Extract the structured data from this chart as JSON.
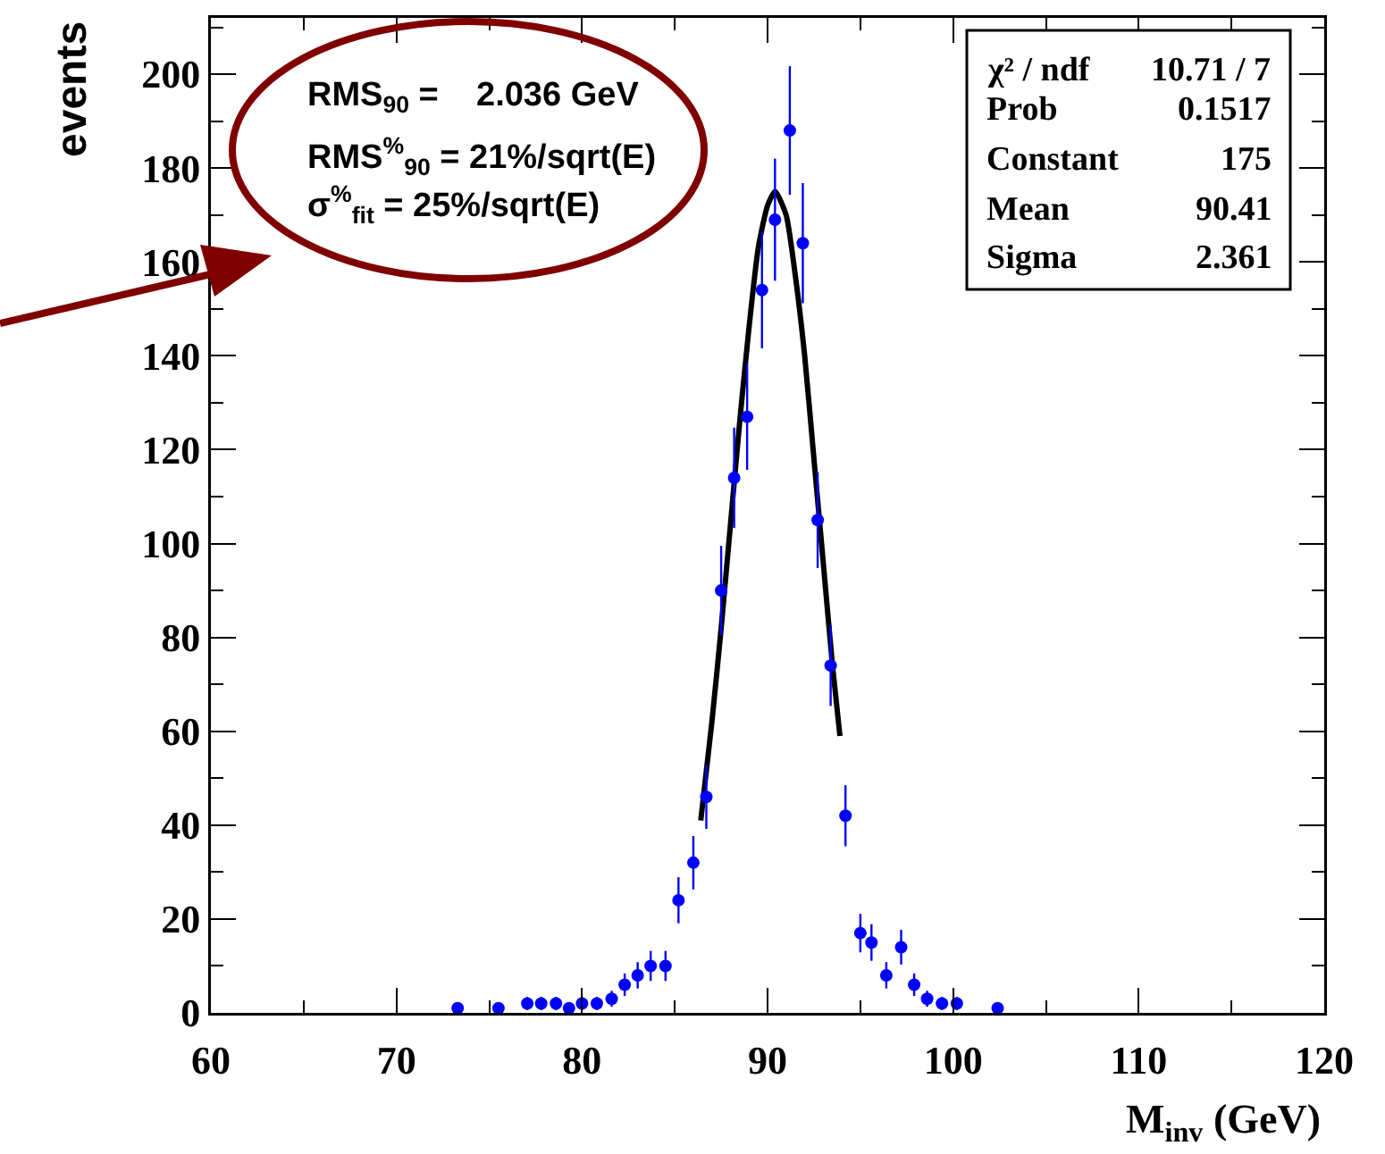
{
  "chart_data": {
    "type": "scatter",
    "xlabel": "M$_{inv}$ (GeV)",
    "ylabel": "events",
    "xlim": [
      60,
      120
    ],
    "xticks": [
      60,
      70,
      80,
      90,
      100,
      110,
      120
    ],
    "ylim": [
      0,
      212
    ],
    "yticks": [
      0,
      20,
      40,
      60,
      80,
      100,
      120,
      140,
      160,
      180,
      200
    ],
    "grid": false,
    "marker": "circle",
    "series": [
      {
        "color": "#0000ff",
        "x": [
          73.3,
          75.5,
          77.05,
          77.8,
          78.6,
          79.3,
          80.0,
          80.8,
          81.6,
          82.3,
          83.0,
          83.7,
          84.5,
          85.2,
          86.0,
          86.7,
          87.5,
          88.2,
          88.9,
          89.7,
          90.4,
          91.2,
          91.9,
          92.7,
          93.4,
          94.2,
          95.0,
          95.6,
          96.4,
          97.2,
          97.9,
          98.6,
          99.4,
          100.2,
          102.4
        ],
        "values": [
          1,
          1,
          2,
          2,
          2,
          1,
          2,
          2,
          3,
          6,
          8,
          10,
          10,
          24,
          32,
          46,
          90,
          114,
          127,
          154,
          169,
          188,
          164,
          105,
          74,
          42,
          17,
          15,
          8,
          14,
          6,
          3,
          2,
          2,
          1
        ],
        "errors": [
          1,
          1,
          1.4,
          1.4,
          1.4,
          1,
          1.4,
          1.4,
          1.7,
          2.4,
          2.8,
          3.2,
          3.2,
          4.9,
          5.7,
          6.8,
          9.5,
          10.7,
          11.3,
          12.4,
          13,
          13.7,
          12.8,
          10.2,
          8.6,
          6.5,
          4.1,
          3.9,
          2.8,
          3.7,
          2.4,
          1.7,
          1.4,
          1.4,
          1
        ]
      },
      {
        "type": "line",
        "color": "#000000",
        "marker": "none",
        "line_style": "solid",
        "x": [
          86.4,
          87,
          87.5,
          88,
          88.5,
          89,
          89.5,
          90,
          90.41,
          91,
          91.5,
          92,
          92.5,
          93,
          93.5,
          93.9
        ],
        "values": [
          41,
          62,
          82,
          104,
          126,
          146,
          163,
          172,
          175,
          170,
          157,
          140,
          118,
          96,
          74,
          59
        ]
      }
    ],
    "annotations": [
      "RMS$_{90}$ =    2.036 GeV",
      "RMS$^{%}$$_{90}$ = 21%/sqrt(E)",
      "σ$^{%}$$_{fit}$ = 25%/sqrt(E)",
      "χ² / ndf",
      "10.71 / 7",
      "Prob",
      "0.1517",
      "Constant",
      "175",
      "Mean",
      "90.41",
      "Sigma",
      "2.361"
    ]
  }
}
